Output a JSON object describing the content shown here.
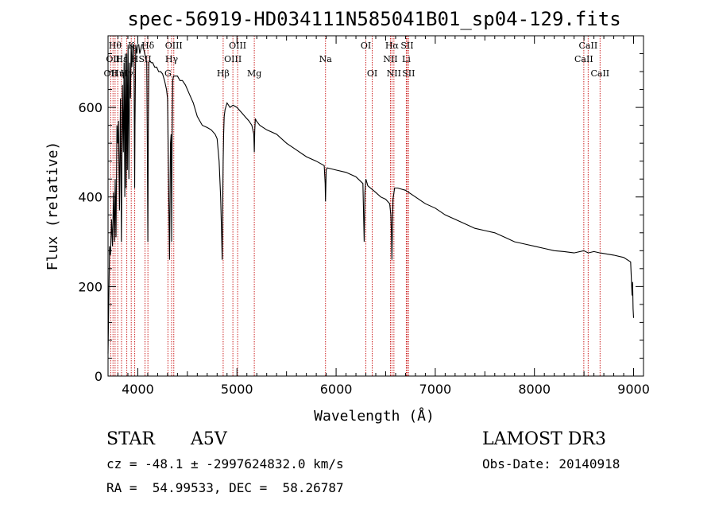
{
  "chart_data": {
    "type": "line",
    "title": "spec-56919-HD034111N585041B01_sp04-129.fits",
    "xlabel": "Wavelength (Å)",
    "ylabel": "Flux (relative)",
    "xlim": [
      3700,
      9100
    ],
    "ylim": [
      0,
      760
    ],
    "xticks": [
      4000,
      5000,
      6000,
      7000,
      8000,
      9000
    ],
    "yticks": [
      0,
      200,
      400,
      600
    ],
    "grid": false,
    "series": [
      {
        "name": "spectrum",
        "x": [
          3700,
          3715,
          3725,
          3735,
          3745,
          3755,
          3765,
          3772,
          3780,
          3790,
          3798,
          3805,
          3815,
          3825,
          3835,
          3845,
          3855,
          3862,
          3869,
          3875,
          3882,
          3889,
          3895,
          3902,
          3910,
          3918,
          3926,
          3933,
          3940,
          3950,
          3960,
          3964,
          3968,
          3972,
          3980,
          3990,
          4000,
          4010,
          4020,
          4030,
          4040,
          4050,
          4060,
          4070,
          4080,
          4090,
          4096,
          4101,
          4106,
          4112,
          4120,
          4135,
          4150,
          4170,
          4190,
          4210,
          4230,
          4250,
          4270,
          4290,
          4300,
          4310,
          4320,
          4330,
          4336,
          4341,
          4346,
          4352,
          4360,
          4380,
          4400,
          4425,
          4450,
          4480,
          4520,
          4560,
          4600,
          4650,
          4700,
          4740,
          4780,
          4800,
          4820,
          4835,
          4845,
          4851,
          4856,
          4861,
          4866,
          4871,
          4880,
          4900,
          4930,
          4960,
          5000,
          5040,
          5080,
          5120,
          5150,
          5170,
          5175,
          5180,
          5185,
          5195,
          5230,
          5300,
          5400,
          5500,
          5600,
          5700,
          5800,
          5880,
          5890,
          5893,
          5896,
          5900,
          5910,
          6000,
          6100,
          6200,
          6270,
          6283,
          6290,
          6300,
          6320,
          6400,
          6450,
          6500,
          6540,
          6552,
          6558,
          6563,
          6568,
          6574,
          6590,
          6620,
          6700,
          6800,
          6900,
          7000,
          7100,
          7200,
          7300,
          7400,
          7500,
          7600,
          7700,
          7800,
          7900,
          8000,
          8100,
          8200,
          8300,
          8400,
          8498,
          8542,
          8600,
          8662,
          8800,
          8900,
          8970,
          8985,
          8990,
          8995,
          9000
        ],
        "values": [
          50,
          290,
          270,
          350,
          290,
          410,
          300,
          440,
          310,
          560,
          520,
          570,
          370,
          620,
          300,
          650,
          500,
          700,
          400,
          720,
          420,
          720,
          460,
          740,
          440,
          700,
          620,
          740,
          690,
          740,
          740,
          600,
          420,
          560,
          740,
          720,
          740,
          740,
          720,
          730,
          740,
          740,
          730,
          720,
          710,
          700,
          530,
          300,
          560,
          700,
          705,
          700,
          700,
          690,
          690,
          680,
          680,
          675,
          660,
          640,
          620,
          450,
          260,
          520,
          540,
          300,
          520,
          660,
          670,
          670,
          670,
          660,
          660,
          650,
          630,
          610,
          580,
          560,
          555,
          550,
          540,
          530,
          480,
          400,
          320,
          260,
          380,
          480,
          540,
          580,
          595,
          610,
          600,
          605,
          600,
          590,
          580,
          570,
          560,
          540,
          500,
          550,
          575,
          570,
          560,
          550,
          540,
          520,
          505,
          490,
          480,
          470,
          430,
          390,
          420,
          460,
          465,
          460,
          455,
          445,
          430,
          300,
          410,
          440,
          425,
          410,
          400,
          395,
          385,
          360,
          320,
          260,
          330,
          395,
          420,
          420,
          415,
          400,
          385,
          375,
          360,
          350,
          340,
          330,
          325,
          320,
          310,
          300,
          295,
          290,
          285,
          280,
          278,
          275,
          280,
          275,
          278,
          275,
          270,
          265,
          255,
          180,
          210,
          150,
          130
        ]
      }
    ],
    "lines": [
      {
        "wavelength": 3727,
        "label": "OII",
        "row": 3
      },
      {
        "wavelength": 3750,
        "label": "OII",
        "row": 2
      },
      {
        "wavelength": 3771,
        "label": "Hθ",
        "row": 1
      },
      {
        "wavelength": 3798,
        "label": "Hη",
        "row": 3
      },
      {
        "wavelength": 3836,
        "label": "Hε",
        "row": 2
      },
      {
        "wavelength": 3889,
        "label": "Hγ",
        "row": 3
      },
      {
        "wavelength": 3934,
        "label": "K",
        "row": 1
      },
      {
        "wavelength": 3969,
        "label": "H",
        "row": 2
      },
      {
        "wavelength": 4073,
        "label": "SII",
        "row": 2
      },
      {
        "wavelength": 4102,
        "label": "Hδ",
        "row": 1
      },
      {
        "wavelength": 4304,
        "label": "G",
        "row": 3
      },
      {
        "wavelength": 4341,
        "label": "Hγ",
        "row": 2
      },
      {
        "wavelength": 4363,
        "label": "OIII",
        "row": 1
      },
      {
        "wavelength": 4861,
        "label": "Hβ",
        "row": 3
      },
      {
        "wavelength": 4959,
        "label": "OIII",
        "row": 2
      },
      {
        "wavelength": 5007,
        "label": "OIII",
        "row": 1
      },
      {
        "wavelength": 5175,
        "label": "Mg",
        "row": 3
      },
      {
        "wavelength": 5893,
        "label": "Na",
        "row": 2
      },
      {
        "wavelength": 6300,
        "label": "OI",
        "row": 1
      },
      {
        "wavelength": 6364,
        "label": "OI",
        "row": 3
      },
      {
        "wavelength": 6548,
        "label": "NII",
        "row": 2
      },
      {
        "wavelength": 6563,
        "label": "Hα",
        "row": 1
      },
      {
        "wavelength": 6583,
        "label": "NII",
        "row": 3
      },
      {
        "wavelength": 6708,
        "label": "Li",
        "row": 2
      },
      {
        "wavelength": 6716,
        "label": "SII",
        "row": 1
      },
      {
        "wavelength": 6731,
        "label": "SII",
        "row": 3
      },
      {
        "wavelength": 8498,
        "label": "CaII",
        "row": 2
      },
      {
        "wavelength": 8542,
        "label": "CaII",
        "row": 1
      },
      {
        "wavelength": 8662,
        "label": "CaII",
        "row": 3
      }
    ]
  },
  "info": {
    "object_class": "STAR",
    "subclass": "A5V",
    "survey": "LAMOST DR3",
    "cz": "cz = -48.1 ± -2997624832.0 km/s",
    "obs_date": "Obs-Date: 20140918",
    "coords": "RA =  54.99533, DEC =  58.26787"
  },
  "colors": {
    "line_marker": "#cc2222",
    "spectrum": "#000000",
    "axis": "#000000"
  }
}
